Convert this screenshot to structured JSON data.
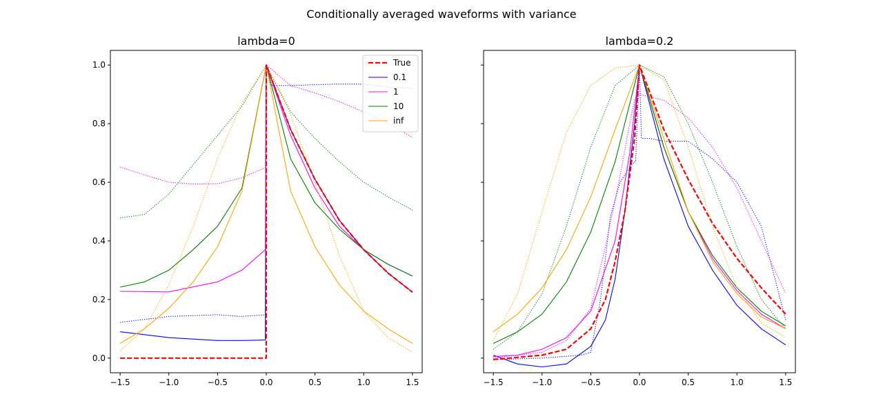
{
  "figure": {
    "suptitle": "Conditionally averaged waveforms with variance"
  },
  "chart_data": [
    {
      "type": "line",
      "title": "lambda=0",
      "xlabel": "",
      "ylabel": "",
      "xlim": [
        -1.6,
        1.6
      ],
      "ylim": [
        -0.05,
        1.05
      ],
      "xticks": [
        -1.5,
        -1.0,
        -0.5,
        0.0,
        0.5,
        1.0,
        1.5
      ],
      "xtick_labels": [
        "−1.5",
        "−1.0",
        "−0.5",
        "0.0",
        "0.5",
        "1.0",
        "1.5"
      ],
      "yticks": [
        0.0,
        0.2,
        0.4,
        0.6,
        0.8,
        1.0
      ],
      "ytick_labels": [
        "0.0",
        "0.2",
        "0.4",
        "0.6",
        "0.8",
        "1.0"
      ],
      "legend": {
        "placement": "top-right",
        "entries": [
          "True",
          "0.1",
          "1",
          "10",
          "inf"
        ]
      },
      "series": [
        {
          "name": "True",
          "kind": "mean",
          "color": "#ff0000",
          "dash": "dashed",
          "x": [
            -1.5,
            -0.001,
            0.0,
            0.25,
            0.5,
            0.75,
            1.0,
            1.25,
            1.5
          ],
          "y": [
            0.0,
            0.0,
            1.0,
            0.78,
            0.61,
            0.47,
            0.37,
            0.29,
            0.225
          ]
        },
        {
          "name": "0.1",
          "kind": "mean",
          "color": "#0000ff",
          "dash": "solid",
          "x": [
            -1.5,
            -1.0,
            -0.5,
            -0.25,
            -0.01,
            0.0,
            0.25,
            0.5,
            0.75,
            1.0,
            1.25,
            1.5
          ],
          "y": [
            0.09,
            0.07,
            0.06,
            0.06,
            0.062,
            1.0,
            0.78,
            0.61,
            0.47,
            0.37,
            0.29,
            0.225
          ]
        },
        {
          "name": "0.1",
          "kind": "variance",
          "color": "#0000ff",
          "dash": "dotted",
          "x": [
            -1.5,
            -1.0,
            -0.5,
            -0.25,
            -0.01,
            0.0,
            0.05,
            0.25,
            0.5,
            0.75,
            1.0,
            1.25,
            1.5
          ],
          "y": [
            0.122,
            0.142,
            0.148,
            0.142,
            0.148,
            1.0,
            0.93,
            0.93,
            0.933,
            0.935,
            0.935,
            0.925,
            0.92
          ]
        },
        {
          "name": "1",
          "kind": "mean",
          "color": "#ff00ff",
          "dash": "solid",
          "x": [
            -1.5,
            -1.0,
            -0.5,
            -0.25,
            -0.01,
            0.0,
            0.25,
            0.5,
            0.75,
            1.0,
            1.25,
            1.5
          ],
          "y": [
            0.228,
            0.226,
            0.26,
            0.3,
            0.37,
            1.0,
            0.76,
            0.58,
            0.45,
            0.37,
            0.32,
            0.28
          ]
        },
        {
          "name": "1",
          "kind": "variance",
          "color": "#ff00ff",
          "dash": "dotted",
          "x": [
            -1.5,
            -1.2,
            -1.0,
            -0.75,
            -0.5,
            -0.25,
            -0.01,
            0.0,
            0.25,
            0.5,
            0.75,
            1.0,
            1.25,
            1.5
          ],
          "y": [
            0.652,
            0.62,
            0.6,
            0.594,
            0.595,
            0.615,
            0.65,
            1.0,
            0.93,
            0.905,
            0.875,
            0.84,
            0.8,
            0.753
          ]
        },
        {
          "name": "10",
          "kind": "mean",
          "color": "#008000",
          "dash": "solid",
          "x": [
            -1.5,
            -1.25,
            -1.0,
            -0.75,
            -0.5,
            -0.25,
            0.0,
            0.25,
            0.5,
            0.75,
            1.0,
            1.25,
            1.5
          ],
          "y": [
            0.242,
            0.26,
            0.3,
            0.37,
            0.45,
            0.58,
            1.0,
            0.68,
            0.53,
            0.44,
            0.37,
            0.32,
            0.28
          ]
        },
        {
          "name": "10",
          "kind": "variance",
          "color": "#008000",
          "dash": "dotted",
          "x": [
            -1.5,
            -1.25,
            -1.0,
            -0.75,
            -0.5,
            -0.25,
            0.0,
            0.25,
            0.5,
            0.75,
            1.0,
            1.25,
            1.5
          ],
          "y": [
            0.478,
            0.49,
            0.56,
            0.66,
            0.76,
            0.86,
            1.0,
            0.84,
            0.75,
            0.67,
            0.6,
            0.55,
            0.505
          ]
        },
        {
          "name": "inf",
          "kind": "mean",
          "color": "#ffa500",
          "dash": "solid",
          "x": [
            -1.5,
            -1.25,
            -1.0,
            -0.75,
            -0.5,
            -0.25,
            0.0,
            0.25,
            0.5,
            0.75,
            1.0,
            1.25,
            1.5
          ],
          "y": [
            0.05,
            0.1,
            0.17,
            0.26,
            0.38,
            0.57,
            1.0,
            0.57,
            0.38,
            0.25,
            0.16,
            0.1,
            0.05
          ]
        },
        {
          "name": "inf",
          "kind": "variance",
          "color": "#ffa500",
          "dash": "dotted",
          "x": [
            -1.5,
            -1.25,
            -1.0,
            -0.75,
            -0.5,
            -0.25,
            0.0,
            0.25,
            0.5,
            0.75,
            1.0,
            1.25,
            1.5
          ],
          "y": [
            0.025,
            0.1,
            0.25,
            0.45,
            0.68,
            0.87,
            1.0,
            0.83,
            0.6,
            0.35,
            0.16,
            0.07,
            0.02
          ]
        }
      ]
    },
    {
      "type": "line",
      "title": "lambda=0.2",
      "xlabel": "",
      "ylabel": "",
      "xlim": [
        -1.6,
        1.6
      ],
      "ylim": [
        -0.05,
        1.05
      ],
      "xticks": [
        -1.5,
        -1.0,
        -0.5,
        0.0,
        0.5,
        1.0,
        1.5
      ],
      "xtick_labels": [
        "−1.5",
        "−1.0",
        "−0.5",
        "0.0",
        "0.5",
        "1.0",
        "1.5"
      ],
      "yticks": [
        0.0,
        0.2,
        0.4,
        0.6,
        0.8,
        1.0
      ],
      "ytick_labels": [
        "",
        "",
        "",
        "",
        "",
        ""
      ],
      "series": [
        {
          "name": "True",
          "kind": "mean",
          "color": "#ff0000",
          "dash": "dashed",
          "x": [
            -1.5,
            -1.0,
            -0.75,
            -0.5,
            -0.35,
            -0.25,
            -0.15,
            -0.05,
            0.0,
            0.25,
            0.5,
            0.75,
            1.0,
            1.25,
            1.5
          ],
          "y": [
            -0.005,
            0.01,
            0.03,
            0.1,
            0.2,
            0.33,
            0.5,
            0.75,
            1.0,
            0.78,
            0.61,
            0.46,
            0.34,
            0.24,
            0.15
          ]
        },
        {
          "name": "0.1",
          "kind": "mean",
          "color": "#0000ff",
          "dash": "solid",
          "x": [
            -1.5,
            -1.25,
            -1.0,
            -0.75,
            -0.5,
            -0.35,
            -0.25,
            -0.15,
            -0.05,
            0.0,
            0.25,
            0.5,
            0.75,
            1.0,
            1.25,
            1.5
          ],
          "y": [
            0.01,
            -0.02,
            -0.03,
            -0.02,
            0.04,
            0.13,
            0.27,
            0.5,
            0.8,
            1.0,
            0.68,
            0.45,
            0.3,
            0.18,
            0.1,
            0.045
          ]
        },
        {
          "name": "0.1",
          "kind": "variance",
          "color": "#0000ff",
          "dash": "dotted",
          "x": [
            -1.5,
            -1.0,
            -0.6,
            -0.5,
            -0.4,
            -0.3,
            -0.2,
            -0.1,
            -0.05,
            -0.04,
            0.0,
            0.02,
            0.1,
            0.25,
            0.5,
            0.75,
            1.0,
            1.25,
            1.5
          ],
          "y": [
            -0.005,
            0.0,
            0.01,
            0.02,
            0.2,
            0.48,
            0.6,
            0.65,
            0.67,
            0.67,
            1.0,
            0.75,
            0.75,
            0.74,
            0.74,
            0.68,
            0.6,
            0.45,
            0.13
          ]
        },
        {
          "name": "1",
          "kind": "mean",
          "color": "#ff00ff",
          "dash": "solid",
          "x": [
            -1.5,
            -1.25,
            -1.0,
            -0.75,
            -0.5,
            -0.25,
            -0.1,
            0.0,
            0.25,
            0.5,
            0.75,
            1.0,
            1.25,
            1.5
          ],
          "y": [
            0.005,
            0.01,
            0.03,
            0.07,
            0.16,
            0.4,
            0.7,
            1.0,
            0.72,
            0.5,
            0.34,
            0.23,
            0.15,
            0.1
          ]
        },
        {
          "name": "1",
          "kind": "variance",
          "color": "#ff00ff",
          "dash": "dotted",
          "x": [
            -1.5,
            -1.0,
            -0.75,
            -0.5,
            -0.35,
            -0.2,
            -0.1,
            -0.05,
            0.0,
            0.25,
            0.5,
            0.75,
            1.0,
            1.25,
            1.5
          ],
          "y": [
            0.0,
            0.02,
            0.06,
            0.17,
            0.38,
            0.62,
            0.8,
            0.88,
            0.9,
            0.88,
            0.82,
            0.72,
            0.58,
            0.4,
            0.22
          ]
        },
        {
          "name": "10",
          "kind": "mean",
          "color": "#008000",
          "dash": "solid",
          "x": [
            -1.5,
            -1.25,
            -1.0,
            -0.75,
            -0.5,
            -0.25,
            0.0,
            0.25,
            0.5,
            0.75,
            1.0,
            1.25,
            1.5
          ],
          "y": [
            0.05,
            0.09,
            0.15,
            0.26,
            0.43,
            0.67,
            1.0,
            0.72,
            0.5,
            0.35,
            0.24,
            0.16,
            0.11
          ]
        },
        {
          "name": "10",
          "kind": "variance",
          "color": "#008000",
          "dash": "dotted",
          "x": [
            -1.5,
            -1.25,
            -1.0,
            -0.75,
            -0.5,
            -0.25,
            0.0,
            0.25,
            0.5,
            0.75,
            1.0,
            1.25,
            1.5
          ],
          "y": [
            0.03,
            0.09,
            0.22,
            0.45,
            0.72,
            0.93,
            1.0,
            0.96,
            0.8,
            0.6,
            0.38,
            0.2,
            0.1
          ]
        },
        {
          "name": "inf",
          "kind": "mean",
          "color": "#ffa500",
          "dash": "solid",
          "x": [
            -1.5,
            -1.25,
            -1.0,
            -0.75,
            -0.5,
            -0.25,
            0.0,
            0.25,
            0.5,
            0.75,
            1.0,
            1.25,
            1.5
          ],
          "y": [
            0.09,
            0.15,
            0.24,
            0.37,
            0.55,
            0.78,
            1.0,
            0.75,
            0.5,
            0.33,
            0.22,
            0.14,
            0.1
          ]
        },
        {
          "name": "inf",
          "kind": "variance",
          "color": "#ffa500",
          "dash": "dotted",
          "x": [
            -1.5,
            -1.25,
            -1.0,
            -0.75,
            -0.5,
            -0.25,
            0.0,
            0.25,
            0.5,
            0.75,
            1.0,
            1.25,
            1.5
          ],
          "y": [
            0.06,
            0.22,
            0.5,
            0.77,
            0.93,
            0.99,
            1.0,
            0.95,
            0.72,
            0.45,
            0.24,
            0.12,
            0.07
          ]
        }
      ]
    }
  ]
}
